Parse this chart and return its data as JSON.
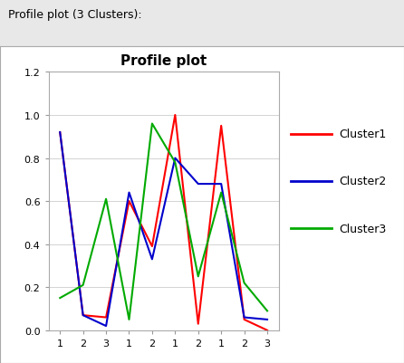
{
  "title": "Profile plot",
  "outer_title": "Profile plot (3 Clusters):",
  "x_labels": [
    "1",
    "2",
    "3",
    "1",
    "2",
    "1",
    "2",
    "1",
    "2",
    "3"
  ],
  "cluster1": [
    0.92,
    0.07,
    0.06,
    0.6,
    0.39,
    1.0,
    0.03,
    0.95,
    0.05,
    0.0
  ],
  "cluster2": [
    0.92,
    0.07,
    0.02,
    0.64,
    0.33,
    0.8,
    0.68,
    0.68,
    0.06,
    0.05
  ],
  "cluster3": [
    0.15,
    0.21,
    0.61,
    0.05,
    0.96,
    0.78,
    0.25,
    0.64,
    0.22,
    0.09
  ],
  "color1": "#ff0000",
  "color2": "#0000cc",
  "color3": "#00aa00",
  "ylim": [
    0,
    1.2
  ],
  "yticks": [
    0,
    0.2,
    0.4,
    0.6,
    0.8,
    1.0,
    1.2
  ],
  "bg_outer": "#e8e8e8",
  "bg_inner": "#ffffff",
  "grid_color": "#cccccc",
  "title_fontsize": 11,
  "outer_title_fontsize": 9,
  "legend_labels": [
    "Cluster1",
    "Cluster2",
    "Cluster3"
  ],
  "line_width": 1.5
}
